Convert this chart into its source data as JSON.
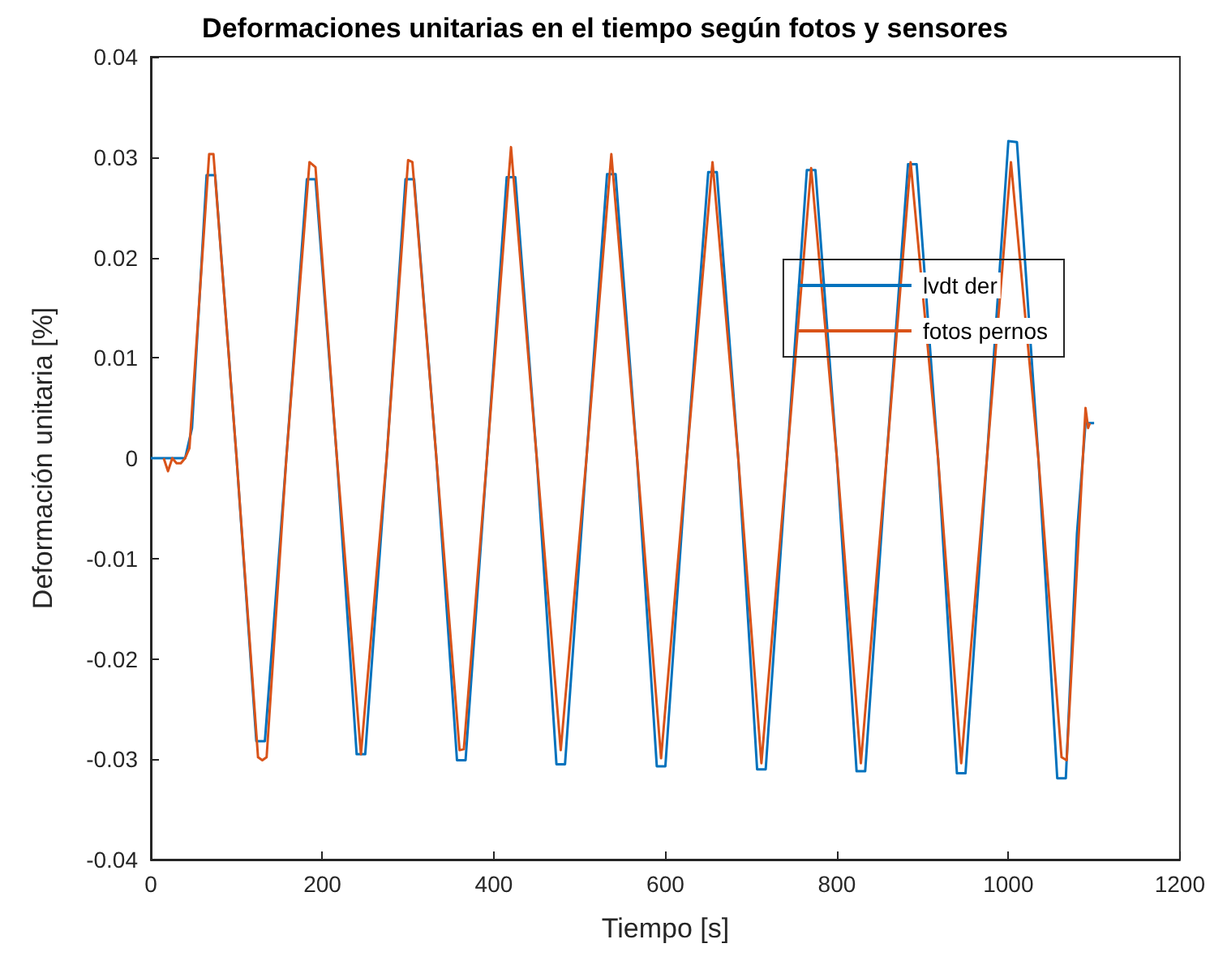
{
  "chart_data": {
    "type": "line",
    "title": "Deformaciones unitarias en el tiempo según fotos y sensores",
    "xlabel": "Tiempo [s]",
    "ylabel": "Deformación unitaria [%]",
    "xlim": [
      0,
      1200
    ],
    "xticks": [
      0,
      200,
      400,
      600,
      800,
      1000,
      1200
    ],
    "ylim": [
      -0.04,
      0.04
    ],
    "yticks": [
      -0.04,
      -0.03,
      -0.02,
      -0.01,
      0,
      0.01,
      0.02,
      0.03,
      0.04
    ],
    "grid": false,
    "legend": "right",
    "marker": "none",
    "line_style": "solid",
    "series": [
      {
        "name": "lvdt der",
        "color": "#0072bd",
        "x": [
          0,
          40,
          48,
          65,
          75,
          100,
          123,
          133,
          158,
          182,
          192,
          217,
          240,
          250,
          275,
          297,
          307,
          333,
          357,
          367,
          392,
          415,
          425,
          450,
          473,
          483,
          508,
          532,
          542,
          567,
          590,
          600,
          625,
          650,
          660,
          685,
          707,
          717,
          742,
          765,
          775,
          800,
          823,
          833,
          858,
          883,
          893,
          918,
          940,
          950,
          975,
          1000,
          1010,
          1035,
          1057,
          1067,
          1080,
          1090,
          1100
        ],
        "values": [
          0,
          0,
          0.003,
          0.0282,
          0.0282,
          0,
          -0.0282,
          -0.0282,
          0,
          0.0278,
          0.0278,
          0,
          -0.0295,
          -0.0295,
          0,
          0.0278,
          0.0278,
          0,
          -0.0301,
          -0.0301,
          0,
          0.028,
          0.028,
          0,
          -0.0305,
          -0.0305,
          0,
          0.0283,
          0.0283,
          0,
          -0.0307,
          -0.0307,
          0,
          0.0285,
          0.0285,
          0,
          -0.031,
          -0.031,
          0,
          0.0287,
          0.0287,
          0,
          -0.0312,
          -0.0312,
          0,
          0.0293,
          0.0293,
          0,
          -0.0314,
          -0.0314,
          0,
          0.0316,
          0.0315,
          0,
          -0.0319,
          -0.0319,
          -0.0075,
          0.0035,
          0.0035
        ]
      },
      {
        "name": "fotos pernos",
        "color": "#d95319",
        "x": [
          15,
          20,
          25,
          30,
          35,
          40,
          45,
          68,
          73,
          100,
          125,
          130,
          135,
          158,
          185,
          192,
          217,
          245,
          275,
          300,
          305,
          333,
          360,
          365,
          392,
          420,
          450,
          478,
          508,
          537,
          567,
          595,
          625,
          655,
          685,
          712,
          742,
          770,
          800,
          828,
          858,
          886,
          918,
          945,
          975,
          1003,
          1035,
          1062,
          1068,
          1090,
          1093,
          1095
        ],
        "values": [
          0,
          -0.0013,
          0,
          -0.0005,
          -0.0005,
          0,
          0.001,
          0.0303,
          0.0303,
          0,
          -0.0298,
          -0.0301,
          -0.0298,
          0,
          0.0295,
          0.029,
          0,
          -0.0295,
          0,
          0.0297,
          0.0295,
          0,
          -0.0291,
          -0.029,
          0,
          0.031,
          0,
          -0.0291,
          0,
          0.0303,
          0,
          -0.0299,
          0,
          0.0295,
          0,
          -0.0304,
          0,
          0.0289,
          0,
          -0.0304,
          0,
          0.0295,
          0,
          -0.0304,
          0,
          0.0295,
          0,
          -0.0298,
          -0.0301,
          0.005,
          0.003,
          0.0035
        ]
      }
    ]
  }
}
